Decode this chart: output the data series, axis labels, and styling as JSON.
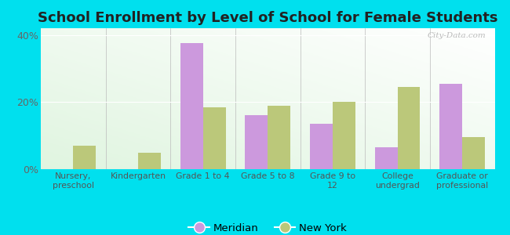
{
  "title": "School Enrollment by Level of School for Female Students",
  "categories": [
    "Nursery,\npreschool",
    "Kindergarten",
    "Grade 1 to 4",
    "Grade 5 to 8",
    "Grade 9 to\n12",
    "College\nundergrad",
    "Graduate or\nprofessional"
  ],
  "meridian": [
    0,
    0,
    37.5,
    16.0,
    13.5,
    6.5,
    25.5
  ],
  "new_york": [
    7.0,
    5.0,
    18.5,
    19.0,
    20.0,
    24.5,
    9.5
  ],
  "meridian_color": "#cc99dd",
  "new_york_color": "#bbc87a",
  "outer_bg": "#00e0ee",
  "plot_bg_color": "#f0f8e8",
  "ylim": [
    0,
    42
  ],
  "yticks": [
    0,
    20,
    40
  ],
  "ytick_labels": [
    "0%",
    "20%",
    "40%"
  ],
  "legend_meridian": "Meridian",
  "legend_new_york": "New York",
  "bar_width": 0.35,
  "title_fontsize": 13,
  "watermark": "City-Data.com"
}
